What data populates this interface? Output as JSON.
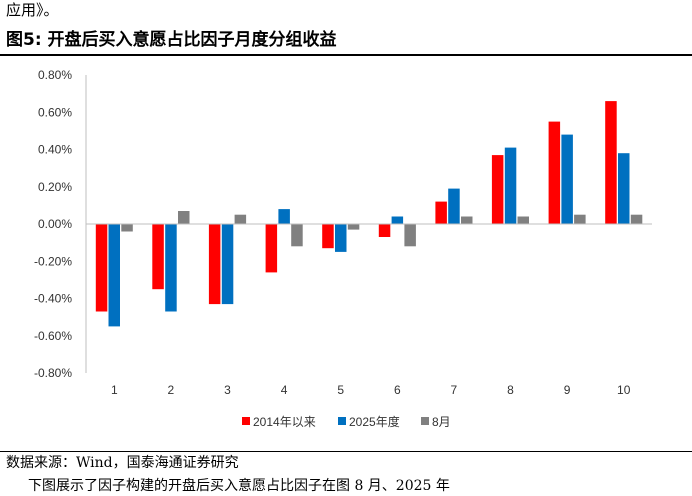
{
  "header": {
    "intro_text": "应用》。",
    "figure_title": "图5:  开盘后买入意愿占比因子月度分组收益"
  },
  "footer": {
    "source": "数据来源：Wind，国泰海通证券研究",
    "cut_line": "下图展示了因子构建的开盘后买入意愿占比因子在图  8 月、2025 年"
  },
  "colors": {
    "series_2014": "#ff0000",
    "series_2025": "#0070c0",
    "series_aug": "#808080",
    "axis": "#bfbfbf"
  },
  "chart_data": {
    "type": "bar",
    "categories": [
      "1",
      "2",
      "3",
      "4",
      "5",
      "6",
      "7",
      "8",
      "9",
      "10"
    ],
    "series": [
      {
        "name": "2014年以来",
        "values": [
          -0.47,
          -0.35,
          -0.43,
          -0.26,
          -0.13,
          -0.07,
          0.12,
          0.37,
          0.55,
          0.66
        ]
      },
      {
        "name": "2025年度",
        "values": [
          -0.55,
          -0.47,
          -0.43,
          0.08,
          -0.15,
          0.04,
          0.19,
          0.41,
          0.48,
          0.38
        ]
      },
      {
        "name": "8月",
        "values": [
          -0.04,
          0.07,
          0.05,
          -0.12,
          -0.03,
          -0.12,
          0.04,
          0.04,
          0.05,
          0.05
        ]
      }
    ],
    "yticks": [
      "0.80%",
      "0.60%",
      "0.40%",
      "0.20%",
      "0.00%",
      "-0.20%",
      "-0.40%",
      "-0.60%",
      "-0.80%"
    ],
    "ylim": [
      -0.8,
      0.8
    ],
    "legend": "bottom",
    "grid": false
  }
}
